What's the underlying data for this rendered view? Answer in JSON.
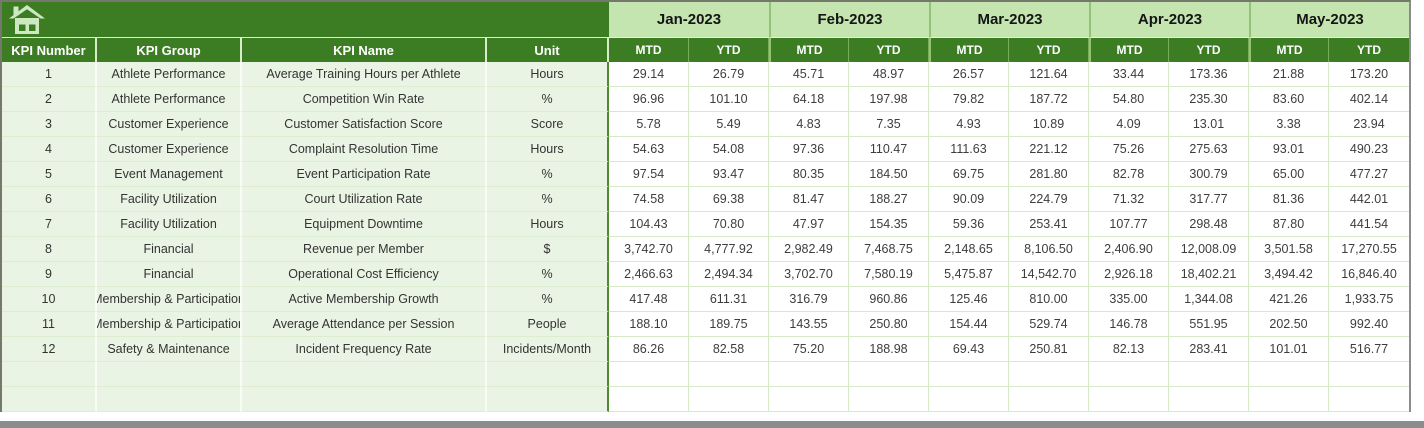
{
  "table": {
    "home_icon": "home",
    "months": [
      "Jan-2023",
      "Feb-2023",
      "Mar-2023",
      "Apr-2023",
      "May-2023"
    ],
    "sub_headers": [
      "MTD",
      "YTD"
    ],
    "left_headers": [
      "KPI Number",
      "KPI Group",
      "KPI Name",
      "Unit"
    ],
    "rows": [
      {
        "number": "1",
        "group": "Athlete Performance",
        "name": "Average Training Hours per Athlete",
        "unit": "Hours",
        "values": [
          "29.14",
          "26.79",
          "45.71",
          "48.97",
          "26.57",
          "121.64",
          "33.44",
          "173.36",
          "21.88",
          "173.20"
        ]
      },
      {
        "number": "2",
        "group": "Athlete Performance",
        "name": "Competition Win Rate",
        "unit": "%",
        "values": [
          "96.96",
          "101.10",
          "64.18",
          "197.98",
          "79.82",
          "187.72",
          "54.80",
          "235.30",
          "83.60",
          "402.14"
        ]
      },
      {
        "number": "3",
        "group": "Customer Experience",
        "name": "Customer Satisfaction Score",
        "unit": "Score",
        "values": [
          "5.78",
          "5.49",
          "4.83",
          "7.35",
          "4.93",
          "10.89",
          "4.09",
          "13.01",
          "3.38",
          "23.94"
        ]
      },
      {
        "number": "4",
        "group": "Customer Experience",
        "name": "Complaint Resolution Time",
        "unit": "Hours",
        "values": [
          "54.63",
          "54.08",
          "97.36",
          "110.47",
          "111.63",
          "221.12",
          "75.26",
          "275.63",
          "93.01",
          "490.23"
        ]
      },
      {
        "number": "5",
        "group": "Event Management",
        "name": "Event Participation Rate",
        "unit": "%",
        "values": [
          "97.54",
          "93.47",
          "80.35",
          "184.50",
          "69.75",
          "281.80",
          "82.78",
          "300.79",
          "65.00",
          "477.27"
        ]
      },
      {
        "number": "6",
        "group": "Facility Utilization",
        "name": "Court Utilization Rate",
        "unit": "%",
        "values": [
          "74.58",
          "69.38",
          "81.47",
          "188.27",
          "90.09",
          "224.79",
          "71.32",
          "317.77",
          "81.36",
          "442.01"
        ]
      },
      {
        "number": "7",
        "group": "Facility Utilization",
        "name": "Equipment Downtime",
        "unit": "Hours",
        "values": [
          "104.43",
          "70.80",
          "47.97",
          "154.35",
          "59.36",
          "253.41",
          "107.77",
          "298.48",
          "87.80",
          "441.54"
        ]
      },
      {
        "number": "8",
        "group": "Financial",
        "name": "Revenue per Member",
        "unit": "$",
        "values": [
          "3,742.70",
          "4,777.92",
          "2,982.49",
          "7,468.75",
          "2,148.65",
          "8,106.50",
          "2,406.90",
          "12,008.09",
          "3,501.58",
          "17,270.55"
        ]
      },
      {
        "number": "9",
        "group": "Financial",
        "name": "Operational Cost Efficiency",
        "unit": "%",
        "values": [
          "2,466.63",
          "2,494.34",
          "3,702.70",
          "7,580.19",
          "5,475.87",
          "14,542.70",
          "2,926.18",
          "18,402.21",
          "3,494.42",
          "16,846.40"
        ]
      },
      {
        "number": "10",
        "group": "Membership & Participation",
        "name": "Active Membership Growth",
        "unit": "%",
        "values": [
          "417.48",
          "611.31",
          "316.79",
          "960.86",
          "125.46",
          "810.00",
          "335.00",
          "1,344.08",
          "421.26",
          "1,933.75"
        ]
      },
      {
        "number": "11",
        "group": "Membership & Participation",
        "name": "Average Attendance per Session",
        "unit": "People",
        "values": [
          "188.10",
          "189.75",
          "143.55",
          "250.80",
          "154.44",
          "529.74",
          "146.78",
          "551.95",
          "202.50",
          "992.40"
        ]
      },
      {
        "number": "12",
        "group": "Safety & Maintenance",
        "name": "Incident Frequency Rate",
        "unit": "Incidents/Month",
        "values": [
          "86.26",
          "82.58",
          "75.20",
          "188.98",
          "69.43",
          "250.81",
          "82.13",
          "283.41",
          "101.01",
          "516.77"
        ]
      }
    ],
    "empty_row_count": 2,
    "colors": {
      "header_green": "#3C7D23",
      "band_green": "#C4E5B0",
      "left_fill": "#EAF4E4",
      "grid_line": "#D6EAC8",
      "icon_light_green": "#CDE9C2",
      "bottom_edge_gray": "#8C8C8C"
    }
  }
}
